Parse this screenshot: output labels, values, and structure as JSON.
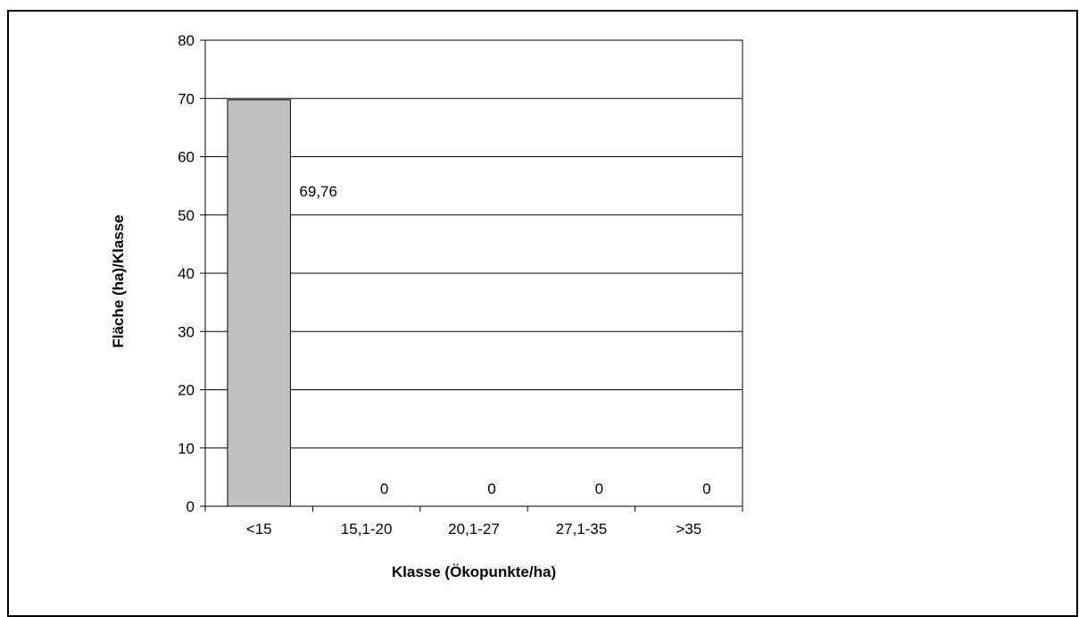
{
  "chart_data": {
    "type": "bar",
    "categories": [
      "<15",
      "15,1-20",
      "20,1-27",
      "27,1-35",
      ">35"
    ],
    "values": [
      69.76,
      0,
      0,
      0,
      0
    ],
    "data_labels": [
      "69,76",
      "0",
      "0",
      "0",
      "0"
    ],
    "title": "",
    "xlabel": "Klasse (Ökopunkte/ha)",
    "ylabel": "Fläche (ha)/Klasse",
    "ylim": [
      0,
      80
    ],
    "yticks": [
      0,
      10,
      20,
      30,
      40,
      50,
      60,
      70,
      80
    ],
    "grid": "horizontal",
    "legend": "none",
    "colors": {
      "bar_fill": "#c0c0c0",
      "bar_stroke": "#000000",
      "grid": "#000000",
      "axis": "#000000"
    }
  }
}
